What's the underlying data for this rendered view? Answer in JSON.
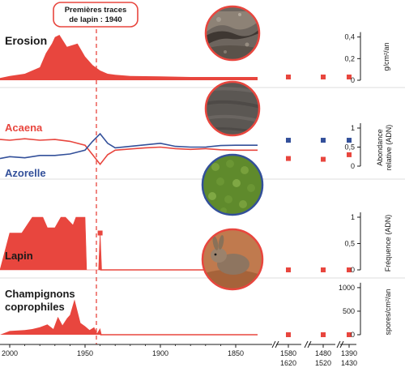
{
  "colors": {
    "red": "#e8463e",
    "blue": "#33509a",
    "dark": "#1a1a1a"
  },
  "callout": {
    "line1": "Premières traces",
    "line2": "de lapin : 1940"
  },
  "x_axis": {
    "ticks": [
      "2000",
      "1950",
      "1900",
      "1850"
    ],
    "break_ticks": [
      {
        "top": "1580",
        "bottom": "1620"
      },
      {
        "top": "1480",
        "bottom": "1520"
      },
      {
        "top": "1390",
        "bottom": "1430"
      }
    ]
  },
  "panels": {
    "erosion": {
      "title": "Erosion",
      "ylabel": "g/cm²/an",
      "ticks": [
        "0,4",
        "0,2",
        "0"
      ]
    },
    "acaena": {
      "title_acaena": "Acaena",
      "title_azorelle": "Azorelle",
      "ylabel_1": "Abondance",
      "ylabel_2": "relative (ADN)",
      "ticks": [
        "1",
        "0,5",
        "0"
      ]
    },
    "lapin": {
      "title": "Lapin",
      "ylabel": "Fréquence (ADN)",
      "ticks": [
        "1",
        "0,5",
        "0"
      ]
    },
    "champignons": {
      "title_1": "Champignons",
      "title_2": "coprophiles",
      "ylabel": "spores/cm²/an",
      "ticks": [
        "1000",
        "500",
        "0"
      ]
    }
  },
  "photos": [
    {
      "icon": "eroded-soil-photo"
    },
    {
      "icon": "acaena-plant-photo"
    },
    {
      "icon": "azorelle-cushion-photo"
    },
    {
      "icon": "rabbit-photo"
    }
  ],
  "chart_data": [
    {
      "type": "area",
      "title": "Erosion",
      "ylabel": "g/cm²/an",
      "ylim": [
        0,
        0.45
      ],
      "x": [
        2010,
        2000,
        1990,
        1980,
        1976,
        1972,
        1970,
        1967,
        1962,
        1955,
        1950,
        1945,
        1940,
        1935,
        1930,
        1920,
        1900,
        1880,
        1860,
        1850
      ],
      "values": [
        0.02,
        0.04,
        0.06,
        0.12,
        0.25,
        0.34,
        0.4,
        0.42,
        0.31,
        0.34,
        0.22,
        0.14,
        0.09,
        0.06,
        0.05,
        0.04,
        0.035,
        0.03,
        0.03,
        0.03
      ],
      "break_values": [
        {
          "period": "1580-1620",
          "value": 0.03
        },
        {
          "period": "1480-1520",
          "value": 0.03
        },
        {
          "period": "1390-1430",
          "value": 0.03
        }
      ]
    },
    {
      "type": "line",
      "title": "Acaena / Azorelle",
      "ylabel": "Abondance relative (ADN)",
      "ylim": [
        0,
        1
      ],
      "series": [
        {
          "name": "Acaena",
          "x": [
            2010,
            2000,
            1990,
            1980,
            1970,
            1960,
            1950,
            1945,
            1940,
            1935,
            1930,
            1920,
            1910,
            1900,
            1890,
            1880,
            1870,
            1860,
            1850
          ],
          "values": [
            0.7,
            0.68,
            0.72,
            0.68,
            0.7,
            0.65,
            0.55,
            0.3,
            0.05,
            0.3,
            0.42,
            0.45,
            0.48,
            0.5,
            0.46,
            0.44,
            0.46,
            0.43,
            0.42
          ],
          "break_values": [
            {
              "period": "1580-1620",
              "value": 0.2
            },
            {
              "period": "1480-1520",
              "value": 0.18
            },
            {
              "period": "1390-1430",
              "value": 0.3
            }
          ]
        },
        {
          "name": "Azorelle",
          "x": [
            2010,
            2000,
            1990,
            1980,
            1970,
            1960,
            1950,
            1945,
            1940,
            1935,
            1930,
            1920,
            1910,
            1900,
            1890,
            1880,
            1870,
            1860,
            1850
          ],
          "values": [
            0.2,
            0.25,
            0.22,
            0.28,
            0.28,
            0.32,
            0.42,
            0.65,
            0.85,
            0.6,
            0.48,
            0.52,
            0.56,
            0.6,
            0.52,
            0.5,
            0.5,
            0.54,
            0.55
          ],
          "break_values": [
            {
              "period": "1580-1620",
              "value": 0.68
            },
            {
              "period": "1480-1520",
              "value": 0.68
            },
            {
              "period": "1390-1430",
              "value": 0.68
            }
          ]
        }
      ]
    },
    {
      "type": "area",
      "title": "Lapin",
      "ylabel": "Fréquence (ADN)",
      "ylim": [
        0,
        1
      ],
      "x": [
        2010,
        2000,
        1992,
        1985,
        1978,
        1975,
        1970,
        1966,
        1963,
        1958,
        1956,
        1953,
        1950,
        1949,
        1948,
        1945,
        1941,
        1940,
        1939,
        1938,
        1850
      ],
      "values": [
        0.0,
        0.7,
        0.7,
        1.0,
        1.0,
        0.8,
        0.8,
        1.0,
        1.0,
        0.85,
        1.0,
        1.0,
        1.0,
        0.0,
        0.0,
        0.0,
        0.0,
        0.7,
        0.0,
        0.0,
        0.0
      ],
      "break_values": [
        {
          "period": "1580-1620",
          "value": 0
        },
        {
          "period": "1480-1520",
          "value": 0
        },
        {
          "period": "1390-1430",
          "value": 0
        }
      ]
    },
    {
      "type": "area",
      "title": "Champignons coprophiles",
      "ylabel": "spores/cm²/an",
      "ylim": [
        0,
        1050
      ],
      "x": [
        2010,
        2000,
        1990,
        1985,
        1980,
        1975,
        1971,
        1968,
        1965,
        1962,
        1960,
        1957,
        1953,
        1950,
        1947,
        1944,
        1942,
        1940,
        1939,
        1938,
        1850
      ],
      "values": [
        0,
        80,
        100,
        120,
        160,
        220,
        120,
        380,
        200,
        350,
        420,
        750,
        250,
        180,
        100,
        160,
        30,
        140,
        0,
        0,
        0
      ],
      "break_values": [
        {
          "period": "1580-1620",
          "value": 0
        },
        {
          "period": "1480-1520",
          "value": 0
        },
        {
          "period": "1390-1430",
          "value": 0
        }
      ]
    }
  ]
}
